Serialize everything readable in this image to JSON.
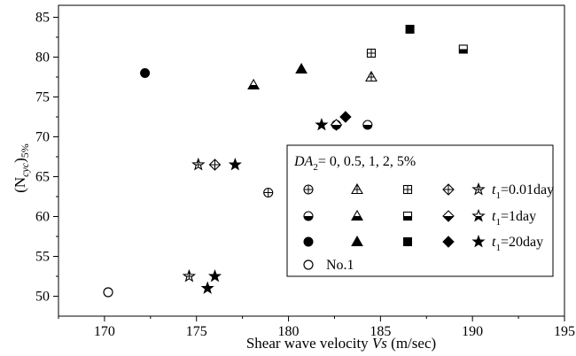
{
  "chart_data": {
    "type": "scatter",
    "xlabel": {
      "text": "Shear wave velocity ",
      "var": "Vs",
      "unit": " (m/sec)"
    },
    "ylabel": {
      "base": "(N",
      "sub": "cyc",
      "close": ")",
      "pct": "5%"
    },
    "xlim": [
      167.5,
      195
    ],
    "ylim": [
      47.5,
      86.5
    ],
    "xticks": [
      170,
      175,
      180,
      185,
      190,
      195
    ],
    "yticks": [
      50,
      55,
      60,
      65,
      70,
      75,
      80,
      85
    ],
    "xtick_labels": [
      "170",
      "175",
      "180",
      "185",
      "190",
      "195"
    ],
    "ytick_labels": [
      "50",
      "55",
      "60",
      "65",
      "70",
      "75",
      "80",
      "85"
    ],
    "grid": false,
    "legend_position": "lower-right",
    "legend": {
      "header_var": "DA",
      "header_sub": "2",
      "header_rest": "= 0, 0.5, 1, 2, 5%",
      "rows": [
        {
          "t_var": "t",
          "t_sub": "1",
          "t_rest": "=0.01day",
          "fill": "cross"
        },
        {
          "t_var": "t",
          "t_sub": "1",
          "t_rest": "=1day",
          "fill": "half"
        },
        {
          "t_var": "t",
          "t_sub": "1",
          "t_rest": "=20day",
          "fill": "filled"
        }
      ],
      "no1_label": "No.1"
    },
    "series": [
      {
        "marker": "circle",
        "fill": "open",
        "points": [
          [
            170.2,
            50.5
          ]
        ]
      },
      {
        "marker": "circle",
        "fill": "cross",
        "points": [
          [
            178.9,
            63.0
          ]
        ]
      },
      {
        "marker": "circle",
        "fill": "half",
        "points": [
          [
            182.6,
            71.5
          ],
          [
            184.3,
            71.5
          ]
        ]
      },
      {
        "marker": "circle",
        "fill": "filled",
        "points": [
          [
            172.2,
            78.0
          ]
        ]
      },
      {
        "marker": "triangle",
        "fill": "cross",
        "points": [
          [
            184.5,
            77.5
          ]
        ]
      },
      {
        "marker": "triangle",
        "fill": "half",
        "points": [
          [
            178.1,
            76.5
          ]
        ]
      },
      {
        "marker": "triangle",
        "fill": "filled",
        "points": [
          [
            180.7,
            78.5
          ]
        ]
      },
      {
        "marker": "square",
        "fill": "cross",
        "points": [
          [
            184.5,
            80.5
          ]
        ]
      },
      {
        "marker": "square",
        "fill": "half",
        "points": [
          [
            189.5,
            81.0
          ]
        ]
      },
      {
        "marker": "square",
        "fill": "filled",
        "points": [
          [
            186.6,
            83.5
          ]
        ]
      },
      {
        "marker": "diamond",
        "fill": "cross",
        "points": [
          [
            176.0,
            66.5
          ]
        ]
      },
      {
        "marker": "diamond",
        "fill": "half",
        "points": [
          [
            182.6,
            71.5
          ]
        ]
      },
      {
        "marker": "diamond",
        "fill": "filled",
        "points": [
          [
            183.1,
            72.5
          ]
        ]
      },
      {
        "marker": "star",
        "fill": "cross",
        "points": [
          [
            175.1,
            66.5
          ],
          [
            174.6,
            52.5
          ]
        ]
      },
      {
        "marker": "star",
        "fill": "filled",
        "points": [
          [
            177.1,
            66.5
          ],
          [
            181.8,
            71.5
          ],
          [
            175.6,
            51.0
          ],
          [
            176.0,
            52.5
          ]
        ]
      }
    ]
  }
}
